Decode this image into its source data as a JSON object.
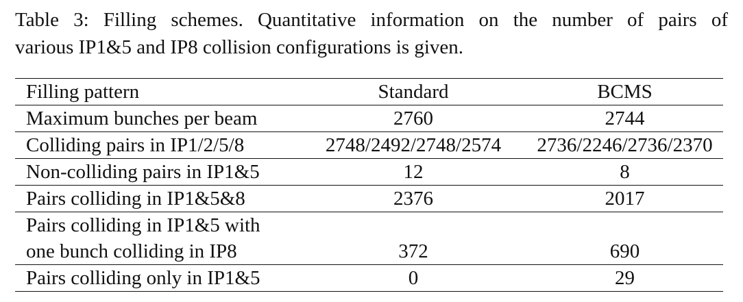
{
  "caption": {
    "line1": "Table 3: Filling schemes. Quantitative information on the number of pairs of",
    "line2": "various IP1&5 and IP8 collision configurations is given."
  },
  "table": {
    "headers": [
      "Filling pattern",
      "Standard",
      "BCMS"
    ],
    "rows": [
      {
        "label": "Maximum bunches per beam",
        "standard": "2760",
        "bcms": "2744"
      },
      {
        "label": "Colliding pairs in IP1/2/5/8",
        "standard": "2748/2492/2748/2574",
        "bcms": "2736/2246/2736/2370"
      },
      {
        "label": "Non-colliding pairs in IP1&5",
        "standard": "12",
        "bcms": "8"
      },
      {
        "label": "Pairs colliding in IP1&5&8",
        "standard": "2376",
        "bcms": "2017"
      },
      {
        "label_line1": "Pairs colliding in IP1&5 with",
        "label_line2": "one bunch colliding in IP8",
        "standard": "372",
        "bcms": "690"
      },
      {
        "label": "Pairs colliding only in IP1&5",
        "standard": "0",
        "bcms": "29"
      }
    ]
  }
}
